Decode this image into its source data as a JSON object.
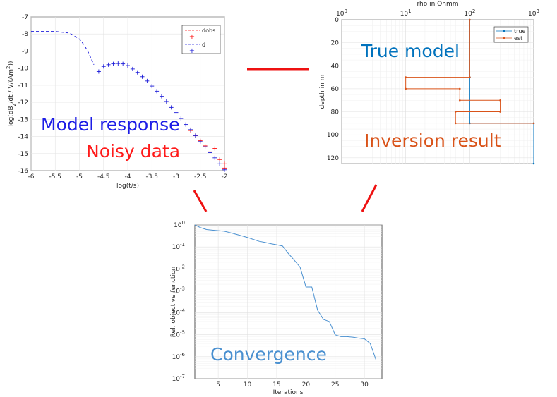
{
  "chart_data": [
    {
      "type": "scatter",
      "xlabel": "log(t/s)",
      "ylabel": "log(dB",
      "ylabel_sub": "z",
      "ylabel_mid": "/dt / V/(Am",
      "ylabel_sup": "2",
      "ylabel_end": "))",
      "xlim": [
        -6,
        -2
      ],
      "ylim": [
        -16,
        -7
      ],
      "xticks": [
        "-6",
        "-5.5",
        "-5",
        "-4.5",
        "-4",
        "-3.5",
        "-3",
        "-2.5",
        "-2"
      ],
      "yticks": [
        "-7",
        "-8",
        "-9",
        "-10",
        "-11",
        "-12",
        "-13",
        "-14",
        "-15",
        "-16"
      ],
      "grid": true,
      "legend": {
        "placement": "top-right",
        "entries": [
          "dobs",
          "d"
        ]
      },
      "series": [
        {
          "name": "d",
          "style": "dashed-line",
          "color": "#2222dd",
          "x": [
            -6,
            -5.5,
            -5.2,
            -5.0,
            -4.9,
            -4.8,
            -4.75,
            -4.7
          ],
          "y": [
            -7.85,
            -7.85,
            -7.95,
            -8.3,
            -8.65,
            -9.15,
            -9.5,
            -9.8
          ]
        },
        {
          "name": "dobs",
          "style": "plus",
          "color": "#ff1010",
          "x": [
            -2.7,
            -2.6,
            -2.5,
            -2.4,
            -2.3,
            -2.2,
            -2.1,
            -2.0,
            -2.0
          ],
          "y": [
            -13.65,
            -13.95,
            -14.25,
            -14.55,
            -14.9,
            -14.7,
            -15.35,
            -15.85,
            -15.6
          ]
        },
        {
          "name": "d",
          "style": "plus",
          "color": "#1b1bd8",
          "x": [
            -4.6,
            -4.5,
            -4.4,
            -4.3,
            -4.2,
            -4.1,
            -4.0,
            -3.9,
            -3.8,
            -3.7,
            -3.6,
            -3.5,
            -3.4,
            -3.3,
            -3.2,
            -3.1,
            -3.0,
            -2.9,
            -2.8,
            -2.7,
            -2.6,
            -2.5,
            -2.4,
            -2.3,
            -2.2,
            -2.1,
            -2.0
          ],
          "y": [
            -10.2,
            -9.9,
            -9.8,
            -9.75,
            -9.73,
            -9.75,
            -9.85,
            -10.05,
            -10.25,
            -10.5,
            -10.75,
            -11.05,
            -11.35,
            -11.65,
            -11.95,
            -12.3,
            -12.6,
            -12.95,
            -13.3,
            -13.6,
            -13.95,
            -14.3,
            -14.6,
            -14.95,
            -15.25,
            -15.6,
            -15.95
          ]
        }
      ],
      "annotations": [
        {
          "text": "Model response",
          "color": "#1d1de6"
        },
        {
          "text": "Noisy data",
          "color": "#ff1a1a"
        }
      ]
    },
    {
      "type": "line",
      "title": "rho in Ohmm",
      "ylabel": "depth in m",
      "x_scale": "log",
      "xlim": [
        1,
        1000
      ],
      "ylim": [
        0,
        125
      ],
      "y_reversed": true,
      "xticks": [
        {
          "base": "10",
          "exp": "0"
        },
        {
          "base": "10",
          "exp": "1"
        },
        {
          "base": "10",
          "exp": "2"
        },
        {
          "base": "10",
          "exp": "3"
        }
      ],
      "yticks": [
        "0",
        "20",
        "40",
        "60",
        "80",
        "100",
        "120"
      ],
      "grid": true,
      "legend": {
        "placement": "top-right",
        "entries": [
          "true",
          "est"
        ]
      },
      "series": [
        {
          "name": "true",
          "color": "#0072bd",
          "x": [
            100,
            100,
            100,
            100,
            1000,
            1000
          ],
          "y": [
            0,
            50,
            50,
            90,
            90,
            125
          ]
        },
        {
          "name": "est",
          "color": "#d95319",
          "x": [
            100,
            100,
            10,
            10,
            70,
            70,
            300,
            300,
            60,
            60,
            1000
          ],
          "y": [
            0,
            50,
            50,
            60,
            60,
            70,
            70,
            80,
            80,
            90,
            90
          ]
        }
      ],
      "annotations": [
        {
          "text": "True model",
          "color": "#0072bd"
        },
        {
          "text": "Inversion result",
          "color": "#d95319"
        }
      ]
    },
    {
      "type": "line",
      "xlabel": "Iterations",
      "ylabel": "Rel. objective function",
      "y_scale": "log",
      "xlim": [
        1,
        33
      ],
      "ylim": [
        1e-07,
        1
      ],
      "xticks": [
        "5",
        "10",
        "15",
        "20",
        "25",
        "30"
      ],
      "yticks": [
        {
          "base": "10",
          "exp": "0"
        },
        {
          "base": "10",
          "exp": "-1"
        },
        {
          "base": "10",
          "exp": "-2"
        },
        {
          "base": "10",
          "exp": "-3"
        },
        {
          "base": "10",
          "exp": "-4"
        },
        {
          "base": "10",
          "exp": "-5"
        },
        {
          "base": "10",
          "exp": "-6"
        },
        {
          "base": "10",
          "exp": "-7"
        }
      ],
      "grid": true,
      "series": [
        {
          "color": "#4a90d0",
          "x": [
            1,
            2,
            3,
            4,
            5,
            6,
            7,
            8,
            9,
            10,
            11,
            12,
            13,
            14,
            15,
            16,
            17,
            18,
            19,
            20,
            21,
            22,
            23,
            24,
            25,
            26,
            27,
            28,
            29,
            30,
            31,
            32
          ],
          "y": [
            1,
            0.75,
            0.62,
            0.58,
            0.55,
            0.52,
            0.45,
            0.38,
            0.32,
            0.27,
            0.22,
            0.18,
            0.16,
            0.14,
            0.125,
            0.11,
            0.05,
            0.025,
            0.012,
            0.0015,
            0.0015,
            0.00013,
            5e-05,
            4e-05,
            1e-05,
            8.2e-06,
            8.2e-06,
            7.8e-06,
            7e-06,
            6.5e-06,
            4e-06,
            7e-07
          ]
        }
      ],
      "annotations": [
        {
          "text": "Convergence",
          "color": "#4a90d0"
        }
      ]
    }
  ],
  "connectors": {
    "color": "#ee1111"
  }
}
